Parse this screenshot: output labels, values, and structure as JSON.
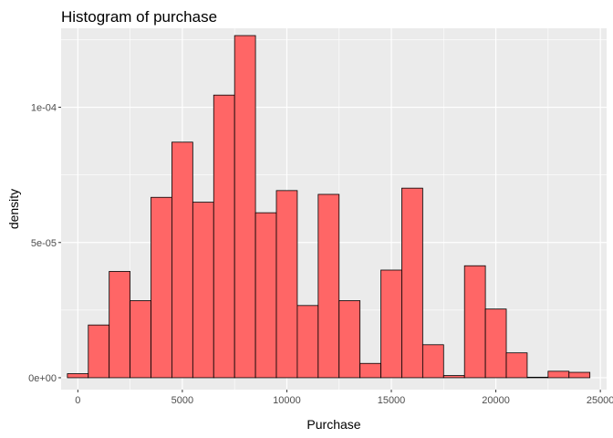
{
  "chart_data": {
    "type": "bar",
    "title": "Histogram of purchase",
    "xlabel": "Purchase",
    "ylabel": "density",
    "xlim": [
      -800,
      25300
    ],
    "ylim": [
      -4.4e-06,
      0.0001292
    ],
    "bin_width": 1000,
    "bin_centers": [
      0,
      1000,
      2000,
      3000,
      4000,
      5000,
      6000,
      7000,
      8000,
      9000,
      10000,
      11000,
      12000,
      13000,
      14000,
      15000,
      16000,
      17000,
      18000,
      19000,
      20000,
      21000,
      22000,
      23000,
      24000
    ],
    "values": [
      1.5e-06,
      1.95e-05,
      3.93e-05,
      2.85e-05,
      6.67e-05,
      8.71e-05,
      6.49e-05,
      0.0001045,
      0.0001265,
      6.1e-05,
      6.92e-05,
      2.67e-05,
      6.78e-05,
      2.85e-05,
      5.3e-06,
      3.98e-05,
      7.01e-05,
      1.22e-05,
      8e-07,
      4.14e-05,
      2.54e-05,
      9.2e-06,
      2e-07,
      2.4e-06,
      2e-06
    ],
    "x_ticks": [
      0,
      5000,
      10000,
      15000,
      20000,
      25000
    ],
    "x_tick_labels": [
      "0",
      "5000",
      "10000",
      "15000",
      "20000",
      "25000"
    ],
    "y_ticks": [
      0,
      5e-05,
      0.0001
    ],
    "y_tick_labels": [
      "0e+00",
      "5e-05",
      "1e-04"
    ],
    "grid": true,
    "legend": "none",
    "colors": {
      "bar_fill": "#ff6666",
      "bar_stroke": "#000000",
      "panel_bg": "#ebebeb",
      "grid_major": "#ffffff",
      "tick_text": "#4d4d4d"
    }
  }
}
